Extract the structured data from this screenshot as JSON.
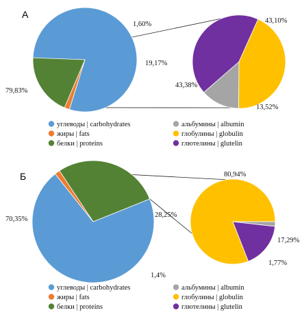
{
  "colors": {
    "carbohydrates": "#5B9BD5",
    "fats": "#ED7D31",
    "proteins": "#548235",
    "albumin": "#A5A5A5",
    "globulin": "#FFC000",
    "glutelin": "#7030A0"
  },
  "chart_data": [
    {
      "type": "pie",
      "panel": "А",
      "main_pie": {
        "slices": [
          {
            "key": "carbohydrates",
            "value": 79.83,
            "label": "79,83%"
          },
          {
            "key": "fats",
            "value": 1.6,
            "label": "1,60%"
          },
          {
            "key": "proteins",
            "value": 19.17,
            "label": "19,17%"
          }
        ]
      },
      "breakout_pie": {
        "slices": [
          {
            "key": "glutelin",
            "value": 43.1,
            "label": "43,10%"
          },
          {
            "key": "albumin",
            "value": 13.52,
            "label": "13,52%"
          },
          {
            "key": "globulin",
            "value": 43.38,
            "label": "43,38%"
          }
        ]
      },
      "legend_left": [
        {
          "key": "carbohydrates",
          "text": "углеводы | carbohydrates"
        },
        {
          "key": "fats",
          "text": "жиры | fats"
        },
        {
          "key": "proteins",
          "text": "белки | proteins"
        }
      ],
      "legend_right": [
        {
          "key": "albumin",
          "text": "альбумины | albumin"
        },
        {
          "key": "globulin",
          "text": "глобулины | globulin"
        },
        {
          "key": "glutelin",
          "text": "глютелины | glutelin"
        }
      ]
    },
    {
      "type": "pie",
      "panel": "Б",
      "main_pie": {
        "slices": [
          {
            "key": "carbohydrates",
            "value": 70.35,
            "label": "70,35%"
          },
          {
            "key": "proteins",
            "value": 28.25,
            "label": "28,25%"
          },
          {
            "key": "fats",
            "value": 1.4,
            "label": "1,4%"
          }
        ]
      },
      "breakout_pie": {
        "slices": [
          {
            "key": "globulin",
            "value": 80.94,
            "label": "80,94%"
          },
          {
            "key": "glutelin",
            "value": 17.29,
            "label": "17,29%"
          },
          {
            "key": "albumin",
            "value": 1.77,
            "label": "1,77%"
          }
        ]
      },
      "legend_left": [
        {
          "key": "carbohydrates",
          "text": "углеводы | carbohydrates"
        },
        {
          "key": "fats",
          "text": "жиры | fats"
        },
        {
          "key": "proteins",
          "text": "белки | proteins"
        }
      ],
      "legend_right": [
        {
          "key": "albumin",
          "text": "альбумины | albumin"
        },
        {
          "key": "globulin",
          "text": "глобулины | globulin"
        },
        {
          "key": "glutelin",
          "text": "глютелины | glutelin"
        }
      ]
    }
  ]
}
